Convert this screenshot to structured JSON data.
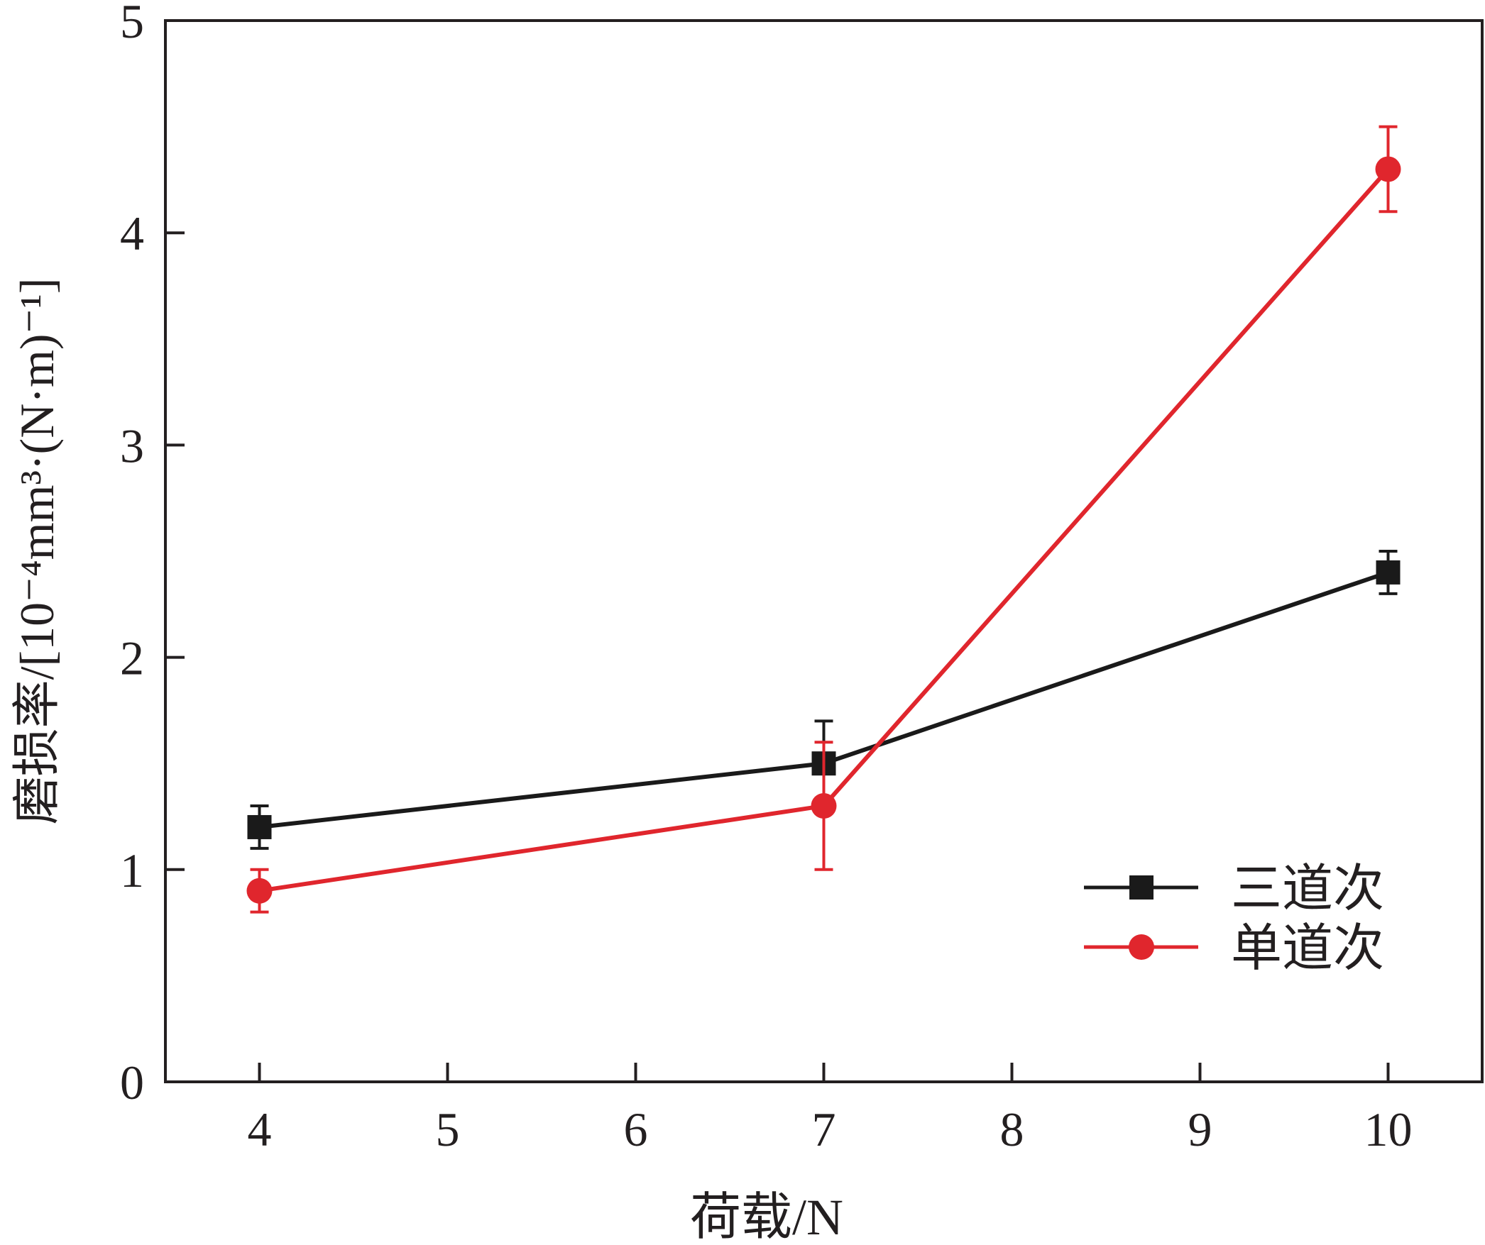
{
  "chart_data": {
    "type": "line",
    "title": "",
    "xlabel": "荷载/N",
    "ylabel": "磨损率/[10⁻⁴mm³·(N·m)⁻¹]",
    "xlim": [
      3.5,
      10.5
    ],
    "ylim": [
      0,
      5
    ],
    "xticks": [
      4,
      5,
      6,
      7,
      8,
      9,
      10
    ],
    "yticks": [
      0,
      1,
      2,
      3,
      4,
      5
    ],
    "grid": false,
    "legend_position": "bottom-right",
    "series": [
      {
        "name": "三道次",
        "color": "#1a1a1a",
        "marker": "square",
        "x": [
          4,
          7,
          10
        ],
        "y": [
          1.2,
          1.5,
          2.4
        ],
        "error": [
          0.1,
          0.2,
          0.1
        ]
      },
      {
        "name": "单道次",
        "color": "#e0262d",
        "marker": "circle",
        "x": [
          4,
          7,
          10
        ],
        "y": [
          0.9,
          1.3,
          4.3
        ],
        "error": [
          0.1,
          0.3,
          0.2
        ]
      }
    ]
  }
}
